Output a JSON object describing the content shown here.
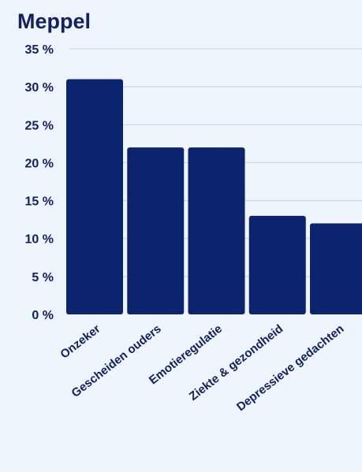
{
  "chart_data": {
    "type": "bar",
    "title": "Meppel",
    "categories": [
      "Onzeker",
      "Gescheiden ouders",
      "Emotieregulatie",
      "Ziekte & gezondheid",
      "Depressieve gedachten"
    ],
    "values": [
      31,
      22,
      22,
      13,
      12
    ],
    "ylim": [
      0,
      35
    ],
    "yticks": [
      0,
      5,
      10,
      15,
      20,
      25,
      30,
      35
    ],
    "ytick_suffix": " %",
    "xlabel": "",
    "ylabel": "",
    "grid": true,
    "bar_color": "#0c2370",
    "text_color": "#142064"
  }
}
